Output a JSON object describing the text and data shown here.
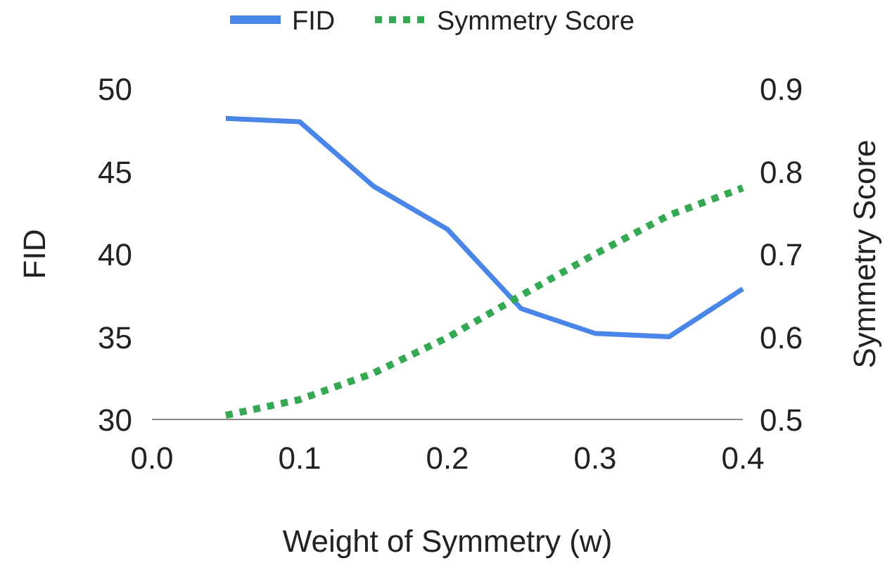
{
  "chart_data": {
    "type": "line",
    "xlabel": "Weight of Symmetry (w)",
    "ylabel": "FID",
    "y2label": "Symmetry Score",
    "x": [
      0.05,
      0.1,
      0.15,
      0.2,
      0.25,
      0.3,
      0.35,
      0.4
    ],
    "series": [
      {
        "name": "FID",
        "color": "#4a86e8",
        "line_style": "solid",
        "values": [
          48.2,
          48.0,
          44.1,
          41.5,
          36.7,
          35.2,
          35.0,
          37.9
        ]
      },
      {
        "name": "Symmetry Score",
        "color": "#34a853",
        "line_style": "dotted",
        "axis": "y2",
        "values": [
          0.505,
          0.524,
          0.556,
          0.599,
          0.65,
          0.7,
          0.747,
          0.78
        ]
      }
    ],
    "xlim": [
      0,
      0.4
    ],
    "xticks": [
      {
        "value": 0,
        "label": "0.0"
      },
      0.1,
      0.2,
      0.3,
      0.4
    ],
    "ylim": [
      30,
      50
    ],
    "yticks": [
      30,
      35,
      40,
      45,
      50
    ],
    "y2lim": [
      0.5,
      0.9
    ],
    "y2ticks": [
      0.5,
      0.6,
      0.7,
      0.8,
      0.9
    ],
    "legend": "top",
    "marker": "none",
    "grid": false
  }
}
